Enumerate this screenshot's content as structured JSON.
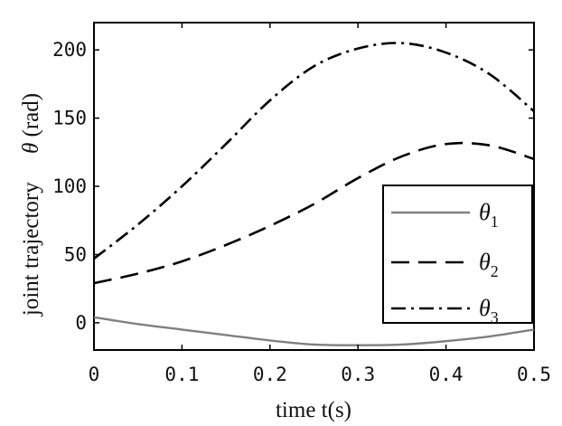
{
  "chart_data": {
    "type": "line",
    "title": "",
    "xlabel": "time t(s)",
    "ylabel_prefix": "joint trajectory",
    "ylabel_symbol": "θ",
    "ylabel_unit": "(rad)",
    "xlim": [
      0,
      0.5
    ],
    "ylim": [
      -20,
      220
    ],
    "xticks": [
      0,
      0.1,
      0.2,
      0.3,
      0.4,
      0.5
    ],
    "xtick_labels": [
      "0",
      "0.1",
      "0.2",
      "0.3",
      "0.4",
      "0.5"
    ],
    "yticks": [
      0,
      50,
      100,
      150,
      200
    ],
    "ytick_labels": [
      "0",
      "50",
      "100",
      "150",
      "200"
    ],
    "grid": false,
    "legend_position": "bottom-right",
    "x": [
      0,
      0.05,
      0.1,
      0.15,
      0.2,
      0.25,
      0.3,
      0.35,
      0.4,
      0.45,
      0.5
    ],
    "series": [
      {
        "name": "θ",
        "subscript": "1",
        "style": "solid",
        "color": "#808080",
        "values": [
          4,
          -1,
          -5,
          -9,
          -13,
          -16,
          -16.5,
          -16,
          -13.5,
          -10,
          -5
        ]
      },
      {
        "name": "θ",
        "subscript": "2",
        "style": "dashed",
        "color": "#000000",
        "values": [
          29,
          36,
          45,
          57,
          71,
          87,
          106,
          122,
          131,
          130,
          120
        ]
      },
      {
        "name": "θ",
        "subscript": "3",
        "style": "dashdot",
        "color": "#000000",
        "values": [
          47,
          72,
          100,
          131,
          163,
          188,
          201,
          205,
          198,
          182,
          155
        ]
      }
    ]
  }
}
